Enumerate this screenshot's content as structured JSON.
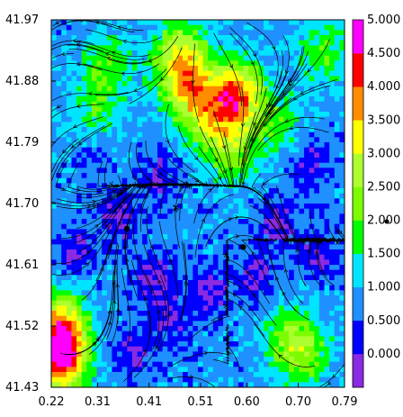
{
  "chart_data": {
    "type": "heatmap",
    "xlim": [
      0.22,
      0.79
    ],
    "ylim": [
      41.43,
      41.97
    ],
    "x_ticks": [
      "0.22",
      "0.31",
      "0.41",
      "0.51",
      "0.60",
      "0.70",
      "0.79"
    ],
    "y_ticks": [
      "41.97",
      "41.88",
      "41.79",
      "41.70",
      "41.61",
      "41.52",
      "41.43"
    ],
    "colorbar": {
      "labels": [
        "0.000",
        "0.500",
        "1.000",
        "1.500",
        "2.000",
        "2.500",
        "3.000",
        "3.500",
        "4.000",
        "4.500",
        "5.000"
      ],
      "colors": [
        "#8a2be2",
        "#0000ff",
        "#1e90ff",
        "#00e5ff",
        "#00ff00",
        "#7cfc00",
        "#adff2f",
        "#ffff00",
        "#ff8c00",
        "#ff0000",
        "#ff00ff"
      ]
    },
    "overlay": "streamlines",
    "markers": [
      {
        "x": 0.367,
        "y": 41.663,
        "symbol": "dot"
      },
      {
        "x": 0.593,
        "y": 41.636,
        "symbol": "dot"
      },
      {
        "x": 0.462,
        "y": 41.694,
        "symbol": "x"
      }
    ],
    "hotspots": [
      {
        "x": 0.24,
        "y": 41.47,
        "value": 4.6
      },
      {
        "x": 0.24,
        "y": 41.52,
        "value": 3.8
      },
      {
        "x": 0.58,
        "y": 41.86,
        "value": 4.4
      },
      {
        "x": 0.48,
        "y": 41.88,
        "value": 3.6
      },
      {
        "x": 0.52,
        "y": 41.83,
        "value": 2.9
      },
      {
        "x": 0.47,
        "y": 41.93,
        "value": 2.8
      },
      {
        "x": 0.33,
        "y": 41.9,
        "value": 2.6
      },
      {
        "x": 0.57,
        "y": 41.78,
        "value": 2.8
      },
      {
        "x": 0.75,
        "y": 41.92,
        "value": 2.4
      },
      {
        "x": 0.68,
        "y": 41.5,
        "value": 2.6
      },
      {
        "x": 0.72,
        "y": 41.48,
        "value": 2.4
      },
      {
        "x": 0.3,
        "y": 41.82,
        "value": 2.2
      },
      {
        "x": 0.66,
        "y": 41.82,
        "value": 2.2
      }
    ],
    "lows": [
      {
        "x": 0.35,
        "y": 41.68,
        "value": 0.3
      },
      {
        "x": 0.27,
        "y": 41.63,
        "value": 0.4
      },
      {
        "x": 0.42,
        "y": 41.59,
        "value": 0.3
      },
      {
        "x": 0.53,
        "y": 41.57,
        "value": 0.3
      },
      {
        "x": 0.62,
        "y": 41.59,
        "value": 0.4
      },
      {
        "x": 0.45,
        "y": 41.53,
        "value": 0.4
      },
      {
        "x": 0.38,
        "y": 41.48,
        "value": 0.4
      },
      {
        "x": 0.66,
        "y": 41.67,
        "value": 0.4
      },
      {
        "x": 0.74,
        "y": 41.63,
        "value": 0.4
      },
      {
        "x": 0.3,
        "y": 41.78,
        "value": 0.6
      },
      {
        "x": 0.43,
        "y": 41.74,
        "value": 0.5
      },
      {
        "x": 0.72,
        "y": 41.76,
        "value": 0.5
      }
    ]
  }
}
